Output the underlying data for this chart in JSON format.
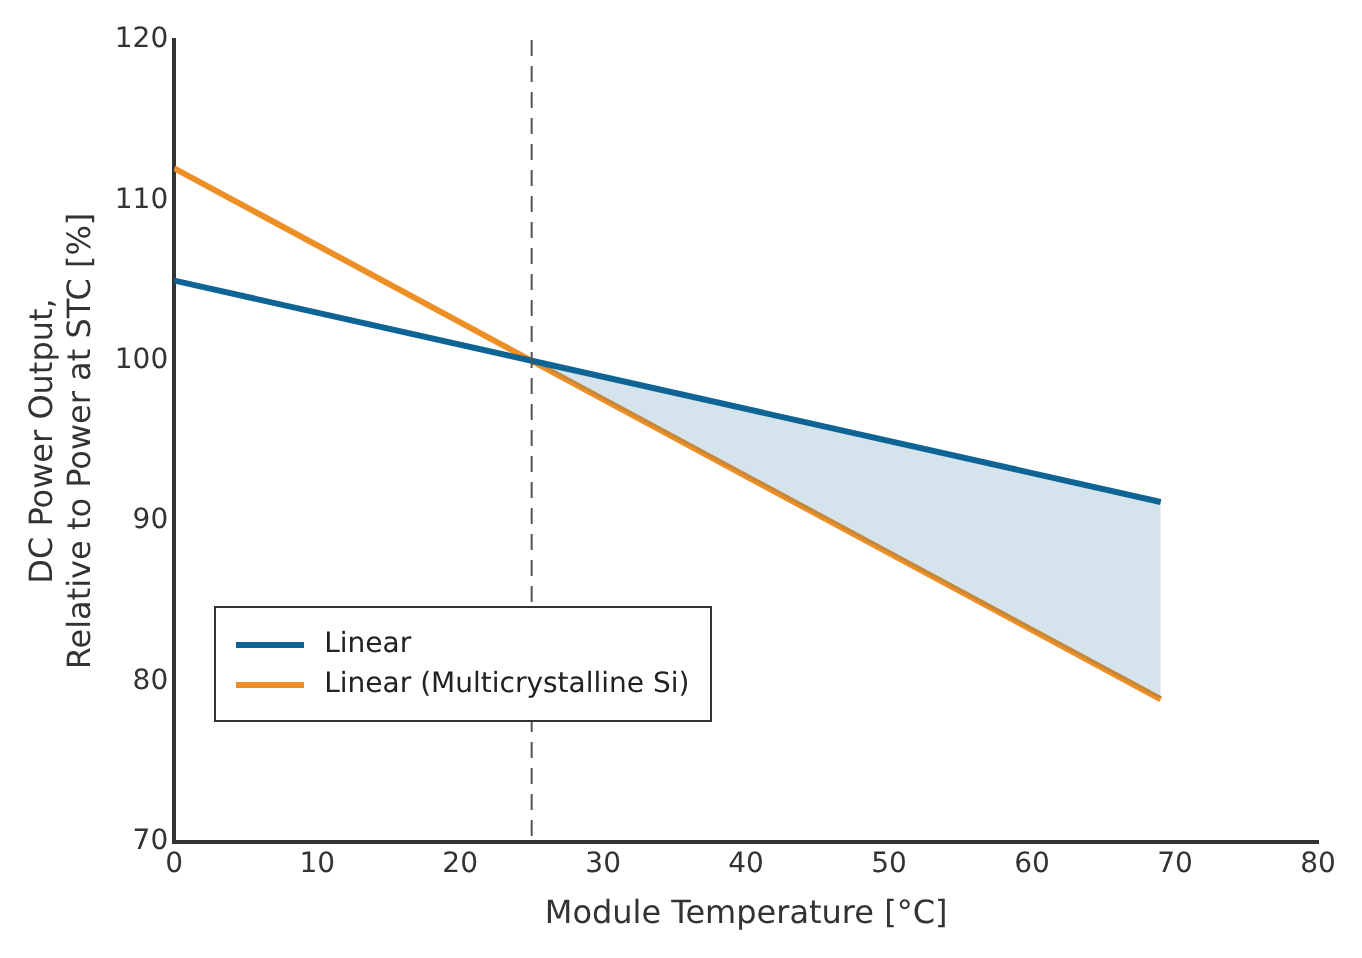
{
  "chart_data": {
    "type": "line",
    "xlabel": "Module Temperature [°C]",
    "ylabel": "DC Power Output,\nRelative to Power at STC [%]",
    "x": [
      0,
      25,
      69
    ],
    "series": [
      {
        "name": "Linear",
        "color": "#0f6496",
        "values": [
          105,
          100,
          91.2
        ],
        "lower": [
          null,
          100,
          78.9
        ],
        "upper": [
          null,
          100,
          91.2
        ]
      },
      {
        "name": "Linear (Multicrystalline Si)",
        "color": "#ee8f25",
        "values": [
          112,
          100,
          78.9
        ]
      }
    ],
    "xlim": [
      0,
      80
    ],
    "xticks": [
      0,
      10,
      20,
      30,
      40,
      50,
      60,
      70,
      80
    ],
    "ylim": [
      70,
      120
    ],
    "yticks": [
      70,
      80,
      90,
      100,
      110,
      120
    ],
    "ref_lines": [
      {
        "axis": "x",
        "value": 25,
        "color": "#555555",
        "line_style": "dashed"
      }
    ],
    "grid": false,
    "legend": "bottom left",
    "marker": "none",
    "line_style": "solid"
  }
}
